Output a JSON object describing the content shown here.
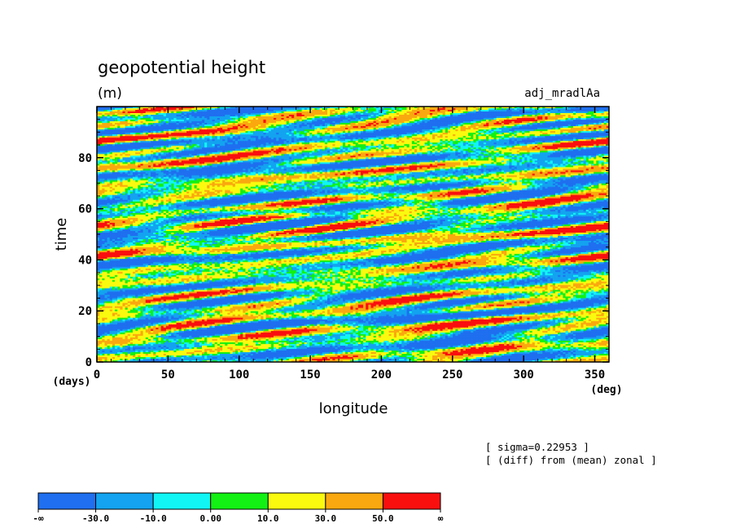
{
  "chart_data": {
    "type": "heatmap",
    "title": "geopotential height",
    "units": "(m)",
    "experiment": "adj_mradlAa",
    "xlabel": "longitude",
    "ylabel": "time",
    "x_unit": "(deg)",
    "y_unit": "(days)",
    "xlim": [
      0,
      360
    ],
    "ylim": [
      0,
      100
    ],
    "x_ticks": [
      "0",
      "50",
      "100",
      "150",
      "200",
      "250",
      "300",
      "350"
    ],
    "y_ticks": [
      "0",
      "20",
      "40",
      "60",
      "80"
    ],
    "notes": [
      "[ sigma=0.22953 ]",
      "[ (diff) from (mean) zonal ]"
    ],
    "colorbar": {
      "labels": [
        "-∞",
        "-30.0",
        "-10.0",
        "0.00",
        "10.0",
        "30.0",
        "50.0",
        "∞"
      ],
      "colors": [
        "#1f6ff0",
        "#13a3f0",
        "#11f5f5",
        "#13f013",
        "#fafa0f",
        "#faa80f",
        "#fa0f0f"
      ]
    }
  }
}
